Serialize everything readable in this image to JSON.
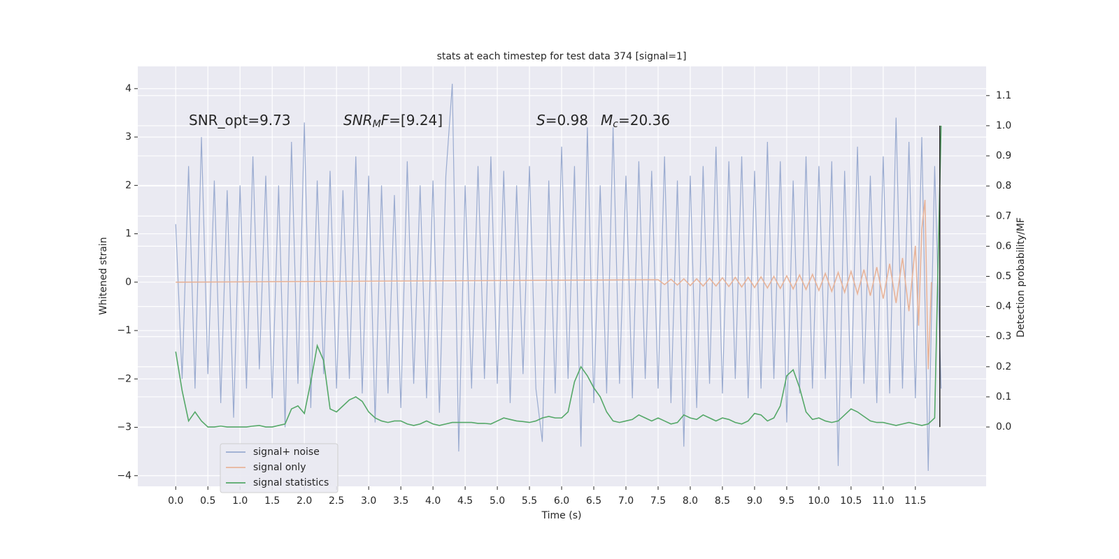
{
  "chart_data": {
    "type": "line",
    "title": "stats at each timestep for test data 374 [signal=1]",
    "xlabel": "Time (s)",
    "ylabel": "Whitened strain",
    "y2label": "Detection probability/MF",
    "xlim": [
      -0.59,
      12.6
    ],
    "ylim": [
      -4.22,
      4.46
    ],
    "y2lim": [
      -0.197,
      1.197
    ],
    "xticks": [
      {
        "value": 0,
        "label": "0.0"
      },
      0.5,
      {
        "value": 1,
        "label": "1.0"
      },
      1.5,
      {
        "value": 2,
        "label": "2.0"
      },
      2.5,
      {
        "value": 3,
        "label": "3.0"
      },
      3.5,
      {
        "value": 4,
        "label": "4.0"
      },
      4.5,
      {
        "value": 5,
        "label": "5.0"
      },
      5.5,
      {
        "value": 6,
        "label": "6.0"
      },
      6.5,
      {
        "value": 7,
        "label": "7.0"
      },
      7.5,
      {
        "value": 8,
        "label": "8.0"
      },
      8.5,
      {
        "value": 9,
        "label": "9.0"
      },
      9.5,
      {
        "value": 10,
        "label": "10.0"
      },
      10.5,
      {
        "value": 11,
        "label": "11.0"
      },
      11.5
    ],
    "yticks": [
      {
        "value": -4,
        "label": "−4"
      },
      {
        "value": -3,
        "label": "−3"
      },
      {
        "value": -2,
        "label": "−2"
      },
      {
        "value": -1,
        "label": "−1"
      },
      0,
      1,
      2,
      3,
      4
    ],
    "y2ticks": [
      {
        "value": 0,
        "label": "0.0"
      },
      0.1,
      0.2,
      0.3,
      0.4,
      0.5,
      0.6,
      0.7,
      0.8,
      0.9,
      {
        "value": 1,
        "label": "1.0"
      },
      1.1
    ],
    "grid": true,
    "legend": "lower left",
    "vline_x": 11.88,
    "annotations": [
      {
        "segments": [
          {
            "text": "SNR_opt=9.73"
          }
        ]
      },
      {
        "segments": [
          {
            "text": "SNR",
            "italic": true
          },
          {
            "text": "M",
            "italic": true,
            "sub": true
          },
          {
            "text": "F",
            "italic": true
          },
          {
            "text": "=[9.24]"
          }
        ]
      },
      {
        "segments": [
          {
            "text": "S",
            "italic": true
          },
          {
            "text": "=0.98"
          }
        ]
      },
      {
        "segments": [
          {
            "text": "M",
            "italic": true
          },
          {
            "text": "c",
            "italic": true,
            "sub": true
          },
          {
            "text": "=20.36"
          }
        ]
      }
    ],
    "series": [
      {
        "name": "signal+ noise",
        "color": "#9aabd0",
        "x": [
          0,
          0.1,
          0.2,
          0.3,
          0.4,
          0.5,
          0.6,
          0.7,
          0.8,
          0.9,
          1,
          1.1,
          1.2,
          1.3,
          1.4,
          1.5,
          1.6,
          1.7,
          1.8,
          1.9,
          2,
          2.1,
          2.2,
          2.3,
          2.4,
          2.5,
          2.6,
          2.7,
          2.8,
          2.9,
          3,
          3.1,
          3.2,
          3.3,
          3.4,
          3.5,
          3.6,
          3.7,
          3.8,
          3.9,
          4,
          4.1,
          4.2,
          4.3,
          4.4,
          4.5,
          4.6,
          4.7,
          4.8,
          4.9,
          5,
          5.1,
          5.2,
          5.3,
          5.4,
          5.5,
          5.6,
          5.7,
          5.8,
          5.9,
          6,
          6.1,
          6.2,
          6.3,
          6.4,
          6.5,
          6.6,
          6.7,
          6.8,
          6.9,
          7,
          7.1,
          7.2,
          7.3,
          7.4,
          7.5,
          7.6,
          7.7,
          7.8,
          7.9,
          8,
          8.1,
          8.2,
          8.3,
          8.4,
          8.5,
          8.6,
          8.7,
          8.8,
          8.9,
          9,
          9.1,
          9.2,
          9.3,
          9.4,
          9.5,
          9.6,
          9.7,
          9.8,
          9.9,
          10,
          10.1,
          10.2,
          10.3,
          10.4,
          10.5,
          10.6,
          10.7,
          10.8,
          10.9,
          11,
          11.1,
          11.2,
          11.3,
          11.4,
          11.5,
          11.6,
          11.7,
          11.8,
          11.9
        ],
        "values": [
          1.2,
          -2.0,
          2.4,
          -2.2,
          3.0,
          -1.9,
          2.1,
          -2.5,
          1.9,
          -2.8,
          2.0,
          -2.2,
          2.6,
          -1.8,
          2.2,
          -2.4,
          2.0,
          -3.0,
          2.9,
          -2.1,
          3.3,
          -2.6,
          2.1,
          -1.9,
          2.3,
          -2.2,
          1.9,
          -2.0,
          2.6,
          -2.3,
          2.2,
          -2.9,
          2.0,
          -2.3,
          1.8,
          -2.6,
          2.5,
          -2.1,
          2.0,
          -2.4,
          2.1,
          -2.7,
          2.2,
          4.1,
          -3.5,
          2.0,
          -2.2,
          2.4,
          -2.0,
          2.6,
          -2.1,
          2.3,
          -2.5,
          2.0,
          -1.9,
          2.4,
          -2.2,
          -3.3,
          2.1,
          -2.3,
          2.8,
          -2.0,
          2.4,
          -3.4,
          3.2,
          -2.5,
          2.0,
          -2.3,
          3.2,
          -2.1,
          2.2,
          -2.4,
          2.5,
          -2.0,
          2.3,
          -2.2,
          2.6,
          -2.5,
          2.1,
          -3.4,
          2.2,
          -2.6,
          2.4,
          -2.1,
          2.8,
          -2.3,
          2.5,
          -2.0,
          2.6,
          -2.4,
          2.3,
          -2.2,
          2.9,
          -2.0,
          2.5,
          -2.9,
          2.1,
          -2.3,
          2.6,
          -2.2,
          2.4,
          -2.0,
          2.5,
          -3.8,
          2.3,
          -2.4,
          2.8,
          -2.1,
          2.2,
          -2.5,
          2.6,
          -2.3,
          3.4,
          -2.2,
          2.9,
          -2.4,
          3.0,
          -3.9,
          2.4,
          -2.2
        ]
      },
      {
        "name": "signal only",
        "color": "#e8b49a",
        "x": [
          0,
          7.5,
          7.6,
          7.7,
          7.8,
          7.9,
          8,
          8.1,
          8.2,
          8.3,
          8.4,
          8.5,
          8.6,
          8.7,
          8.8,
          8.9,
          9,
          9.1,
          9.2,
          9.3,
          9.4,
          9.5,
          9.6,
          9.7,
          9.8,
          9.9,
          10,
          10.1,
          10.2,
          10.3,
          10.4,
          10.5,
          10.6,
          10.7,
          10.8,
          10.9,
          11,
          11.1,
          11.2,
          11.3,
          11.4,
          11.5,
          11.55,
          11.6,
          11.65,
          11.7,
          11.75
        ],
        "values": [
          0,
          0.05,
          -0.05,
          0.06,
          -0.06,
          0.07,
          -0.07,
          0.07,
          -0.08,
          0.08,
          -0.08,
          0.09,
          -0.09,
          0.1,
          -0.1,
          0.1,
          -0.11,
          0.11,
          -0.12,
          0.12,
          -0.13,
          0.13,
          -0.14,
          0.15,
          -0.15,
          0.16,
          -0.17,
          0.18,
          -0.19,
          0.2,
          -0.21,
          0.22,
          -0.24,
          0.26,
          -0.28,
          0.31,
          -0.34,
          0.38,
          -0.43,
          0.5,
          -0.6,
          0.75,
          -0.9,
          1.1,
          1.7,
          -1.8,
          0
        ]
      },
      {
        "name": "signal statistics",
        "color": "#55a868",
        "axis": "y2",
        "x": [
          0,
          0.1,
          0.2,
          0.3,
          0.4,
          0.5,
          0.6,
          0.7,
          0.8,
          0.9,
          1,
          1.1,
          1.2,
          1.3,
          1.4,
          1.5,
          1.6,
          1.7,
          1.8,
          1.9,
          2,
          2.1,
          2.2,
          2.3,
          2.4,
          2.5,
          2.6,
          2.7,
          2.8,
          2.9,
          3,
          3.1,
          3.2,
          3.3,
          3.4,
          3.5,
          3.6,
          3.7,
          3.8,
          3.9,
          4,
          4.1,
          4.2,
          4.3,
          4.4,
          4.5,
          4.6,
          4.7,
          4.8,
          4.9,
          5,
          5.1,
          5.2,
          5.3,
          5.4,
          5.5,
          5.6,
          5.7,
          5.8,
          5.9,
          6,
          6.1,
          6.2,
          6.3,
          6.4,
          6.5,
          6.6,
          6.7,
          6.8,
          6.9,
          7,
          7.1,
          7.2,
          7.3,
          7.4,
          7.5,
          7.6,
          7.7,
          7.8,
          7.9,
          8,
          8.1,
          8.2,
          8.3,
          8.4,
          8.5,
          8.6,
          8.7,
          8.8,
          8.9,
          9,
          9.1,
          9.2,
          9.3,
          9.4,
          9.5,
          9.6,
          9.7,
          9.8,
          9.9,
          10,
          10.1,
          10.2,
          10.3,
          10.4,
          10.5,
          10.6,
          10.7,
          10.8,
          10.9,
          11,
          11.1,
          11.2,
          11.3,
          11.4,
          11.5,
          11.6,
          11.7,
          11.8,
          11.9
        ],
        "values": [
          0.25,
          0.12,
          0.02,
          0.05,
          0.02,
          0,
          0,
          0.003,
          0,
          0,
          0,
          0,
          0.003,
          0.005,
          0,
          0,
          0.005,
          0.01,
          0.06,
          0.07,
          0.045,
          0.15,
          0.27,
          0.22,
          0.06,
          0.05,
          0.07,
          0.09,
          0.1,
          0.085,
          0.05,
          0.03,
          0.02,
          0.015,
          0.02,
          0.02,
          0.01,
          0.005,
          0.01,
          0.02,
          0.01,
          0.005,
          0.01,
          0.015,
          0.015,
          0.015,
          0.015,
          0.012,
          0.012,
          0.01,
          0.02,
          0.03,
          0.025,
          0.02,
          0.018,
          0.015,
          0.02,
          0.03,
          0.035,
          0.03,
          0.03,
          0.05,
          0.15,
          0.2,
          0.17,
          0.13,
          0.1,
          0.05,
          0.02,
          0.015,
          0.02,
          0.025,
          0.04,
          0.03,
          0.02,
          0.03,
          0.02,
          0.01,
          0.015,
          0.04,
          0.03,
          0.025,
          0.04,
          0.03,
          0.02,
          0.03,
          0.025,
          0.015,
          0.01,
          0.02,
          0.045,
          0.04,
          0.02,
          0.03,
          0.07,
          0.17,
          0.19,
          0.13,
          0.05,
          0.025,
          0.03,
          0.02,
          0.015,
          0.02,
          0.04,
          0.06,
          0.05,
          0.035,
          0.02,
          0.015,
          0.015,
          0.01,
          0.005,
          0.01,
          0.015,
          0.01,
          0.005,
          0.01,
          0.03,
          1.0
        ]
      }
    ]
  }
}
